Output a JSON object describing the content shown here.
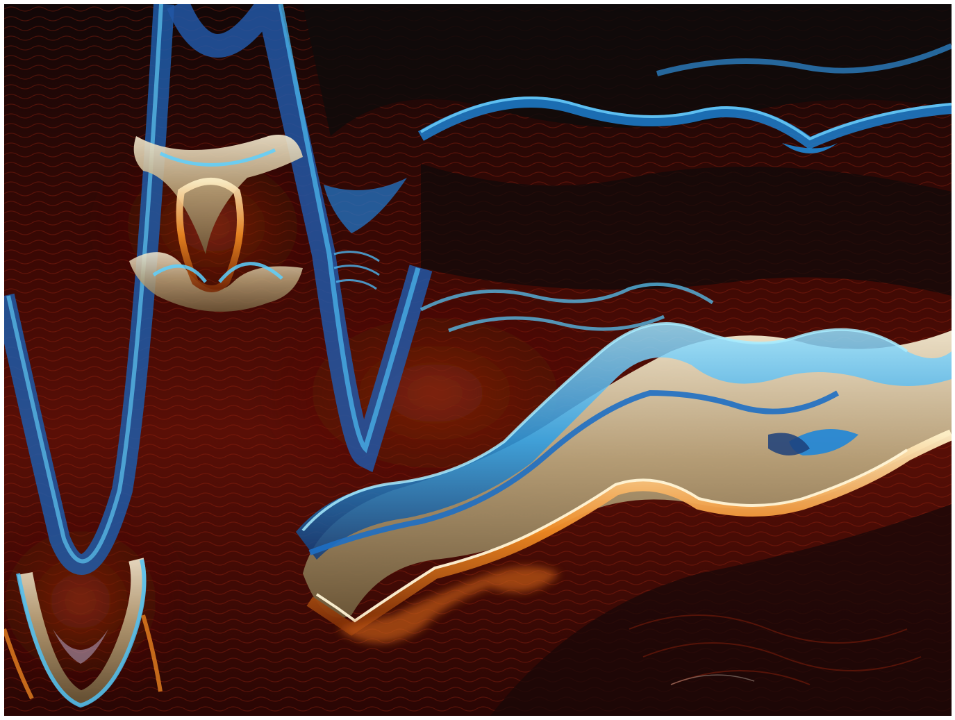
{
  "artwork": {
    "kind": "abstract-fractal-waves",
    "palette": {
      "background": "#1a0706",
      "dark": "#0e0b0b",
      "deep_red": "#5a0c05",
      "red": "#8a1c08",
      "orange": "#e07a1a",
      "gold": "#c9b48a",
      "cream": "#f3e6c4",
      "blue": "#1e88d8",
      "cyan": "#56c8f2",
      "navy": "#1c3f7a"
    }
  }
}
